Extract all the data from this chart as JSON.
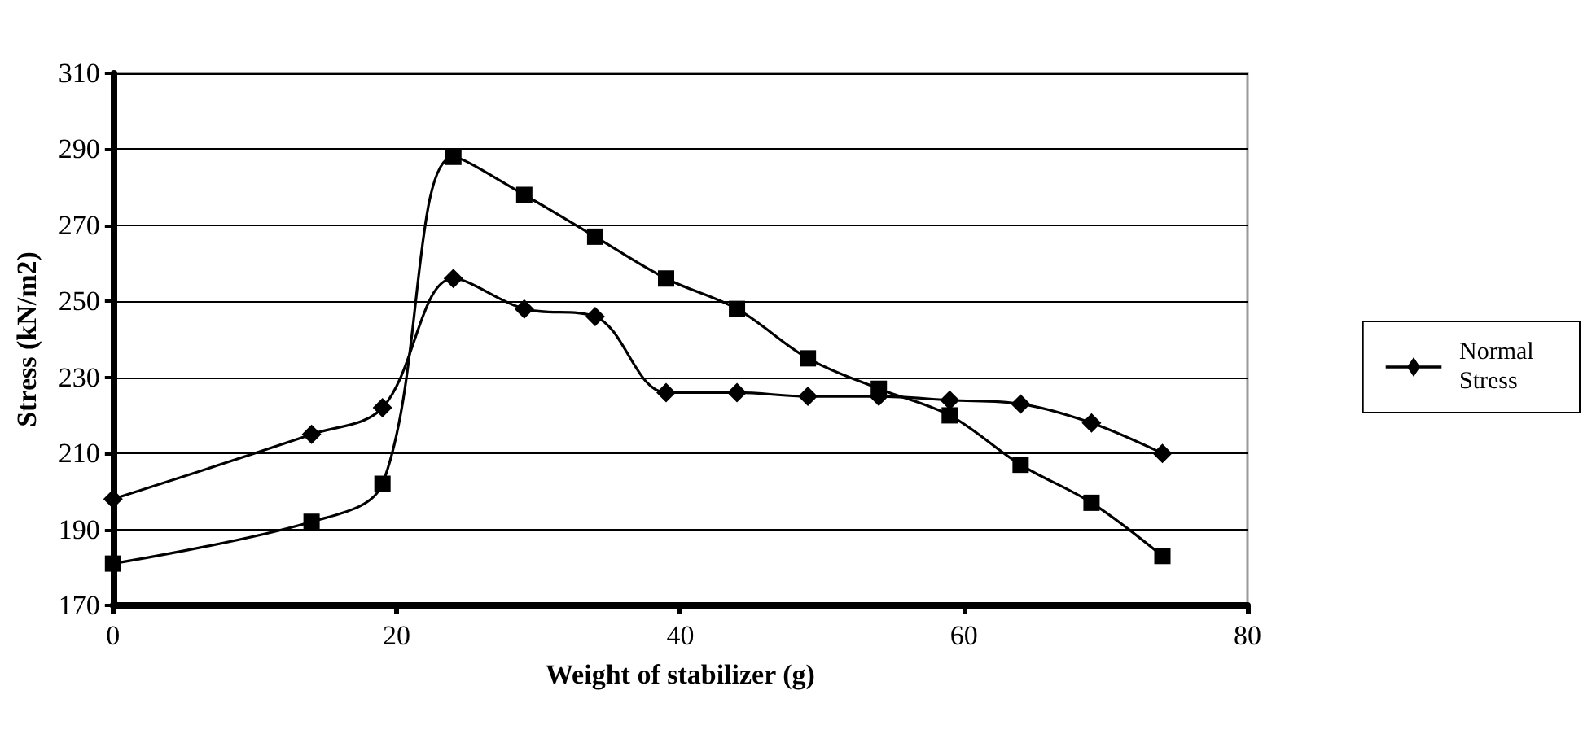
{
  "chart_data": {
    "type": "line",
    "xlabel": "Weight of stabilizer (g)",
    "ylabel": "Stress (kN/m2)",
    "x": [
      0,
      14,
      19,
      24,
      29,
      34,
      39,
      44,
      49,
      54,
      59,
      64,
      69,
      74
    ],
    "series": [
      {
        "name": "Normal Stress",
        "color": "#000000",
        "marker": "diamond",
        "values": [
          198,
          215,
          222,
          256,
          248,
          246,
          226,
          226,
          225,
          225,
          224,
          223,
          218,
          210
        ]
      },
      {
        "color": "#000000",
        "marker": "square",
        "values": [
          181,
          192,
          202,
          288,
          278,
          267,
          256,
          248,
          235,
          227,
          220,
          207,
          197,
          183
        ]
      }
    ],
    "xlim": [
      0,
      80
    ],
    "xticks": [
      0,
      20,
      40,
      60,
      80
    ],
    "ylim": [
      170,
      310
    ],
    "yticks": [
      170,
      190,
      210,
      230,
      250,
      270,
      290,
      310
    ],
    "grid": "y",
    "legend": "right",
    "line_style": "solid"
  }
}
